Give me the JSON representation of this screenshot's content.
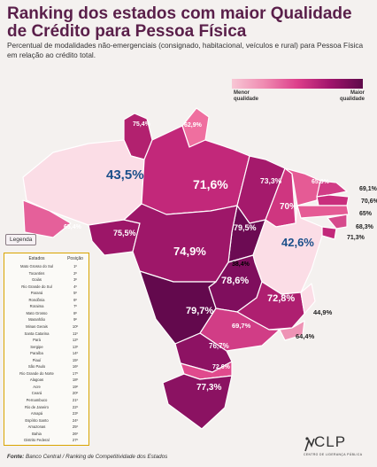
{
  "title": "Ranking dos estados com maior Qualidade de Crédito para Pessoa Física",
  "subtitle": "Percentual de modalidades não-emergenciais (consignado, habitacional, veículos e rural) para Pessoa Física em relação ao crédito total.",
  "legend": {
    "low": "Menor qualidade",
    "high": "Maior qualidade"
  },
  "legenda_tag": "Legenda",
  "table": {
    "col_state": "Estados",
    "col_pos": "Posição",
    "rows": [
      {
        "state": "Mato Grosso do Sul",
        "pos": "1º"
      },
      {
        "state": "Tocantins",
        "pos": "2º"
      },
      {
        "state": "Goiás",
        "pos": "3º"
      },
      {
        "state": "Rio Grande do Sul",
        "pos": "4º"
      },
      {
        "state": "Paraná",
        "pos": "5º"
      },
      {
        "state": "Rondônia",
        "pos": "6º"
      },
      {
        "state": "Roraima",
        "pos": "7º"
      },
      {
        "state": "Mato Grosso",
        "pos": "8º"
      },
      {
        "state": "Maranhão",
        "pos": "9º"
      },
      {
        "state": "Minas Gerais",
        "pos": "10º"
      },
      {
        "state": "Santa Catarina",
        "pos": "11º"
      },
      {
        "state": "Pará",
        "pos": "12º"
      },
      {
        "state": "Sergipe",
        "pos": "13º"
      },
      {
        "state": "Paraíba",
        "pos": "14º"
      },
      {
        "state": "Piauí",
        "pos": "15º"
      },
      {
        "state": "São Paulo",
        "pos": "16º"
      },
      {
        "state": "Rio Grande do Norte",
        "pos": "17º"
      },
      {
        "state": "Alagoas",
        "pos": "18º"
      },
      {
        "state": "Acre",
        "pos": "19º"
      },
      {
        "state": "Ceará",
        "pos": "20º"
      },
      {
        "state": "Pernambuco",
        "pos": "21º"
      },
      {
        "state": "Rio de Janeiro",
        "pos": "22º"
      },
      {
        "state": "Amapá",
        "pos": "23º"
      },
      {
        "state": "Espírito Santo",
        "pos": "24º"
      },
      {
        "state": "Amazonas",
        "pos": "25º"
      },
      {
        "state": "Bahia",
        "pos": "26º"
      },
      {
        "state": "Distrito Federal",
        "pos": "27º"
      }
    ]
  },
  "map": {
    "states": [
      {
        "id": "RR",
        "value": "75,4%",
        "color": "#b2216f"
      },
      {
        "id": "AP",
        "value": "62,9%",
        "color": "#ef6f9f"
      },
      {
        "id": "AM",
        "value": "43,5%",
        "color": "#fbdde6"
      },
      {
        "id": "PA",
        "value": "71,6%",
        "color": "#c2287a"
      },
      {
        "id": "MA",
        "value": "73,3%",
        "color": "#a51a6c"
      },
      {
        "id": "PI",
        "value": "70%",
        "color": "#cf3680"
      },
      {
        "id": "CE",
        "value": "65,3%",
        "color": "#e55b95"
      },
      {
        "id": "AC",
        "value": "65,4%",
        "color": "#e5609a"
      },
      {
        "id": "RO",
        "value": "75,5%",
        "color": "#9c1668"
      },
      {
        "id": "TO",
        "value": "79,5%",
        "color": "#6c0b53"
      },
      {
        "id": "BA",
        "value": "42,6%",
        "color": "#fbdde6"
      },
      {
        "id": "MT",
        "value": "74,9%",
        "color": "#9e1769"
      },
      {
        "id": "DF",
        "value": "38,4%",
        "color": "#ffffff"
      },
      {
        "id": "GO",
        "value": "78,6%",
        "color": "#7f0e5d"
      },
      {
        "id": "MG",
        "value": "72,8%",
        "color": "#ae1f70"
      },
      {
        "id": "MS",
        "value": "79,7%",
        "color": "#63094d"
      },
      {
        "id": "SP",
        "value": "69,7%",
        "color": "#d13d86"
      },
      {
        "id": "ES",
        "value": "44,9%",
        "color": "#fbdde6"
      },
      {
        "id": "RJ",
        "value": "64,4%",
        "color": "#ee93b5"
      },
      {
        "id": "PR",
        "value": "76,7%",
        "color": "#8d1263"
      },
      {
        "id": "SC",
        "value": "72,6%",
        "color": "#e04a8d"
      },
      {
        "id": "RS",
        "value": "77,3%",
        "color": "#8b1262"
      },
      {
        "id": "RN",
        "value": "69,1%",
        "color": "#d13d86"
      },
      {
        "id": "PB",
        "value": "70,6%",
        "color": "#c92e7d"
      },
      {
        "id": "PE",
        "value": "65%",
        "color": "#e55b95"
      },
      {
        "id": "AL",
        "value": "68,3%",
        "color": "#d64a8c"
      },
      {
        "id": "SE",
        "value": "71,3%",
        "color": "#c2287a"
      }
    ]
  },
  "footer": {
    "label": "Fonte:",
    "text": "Banco Central / Ranking de Competitividade dos Estados"
  },
  "logo": {
    "name": "CLP",
    "sub": "CENTRO DE LIDERANÇA PÚBLICA"
  }
}
